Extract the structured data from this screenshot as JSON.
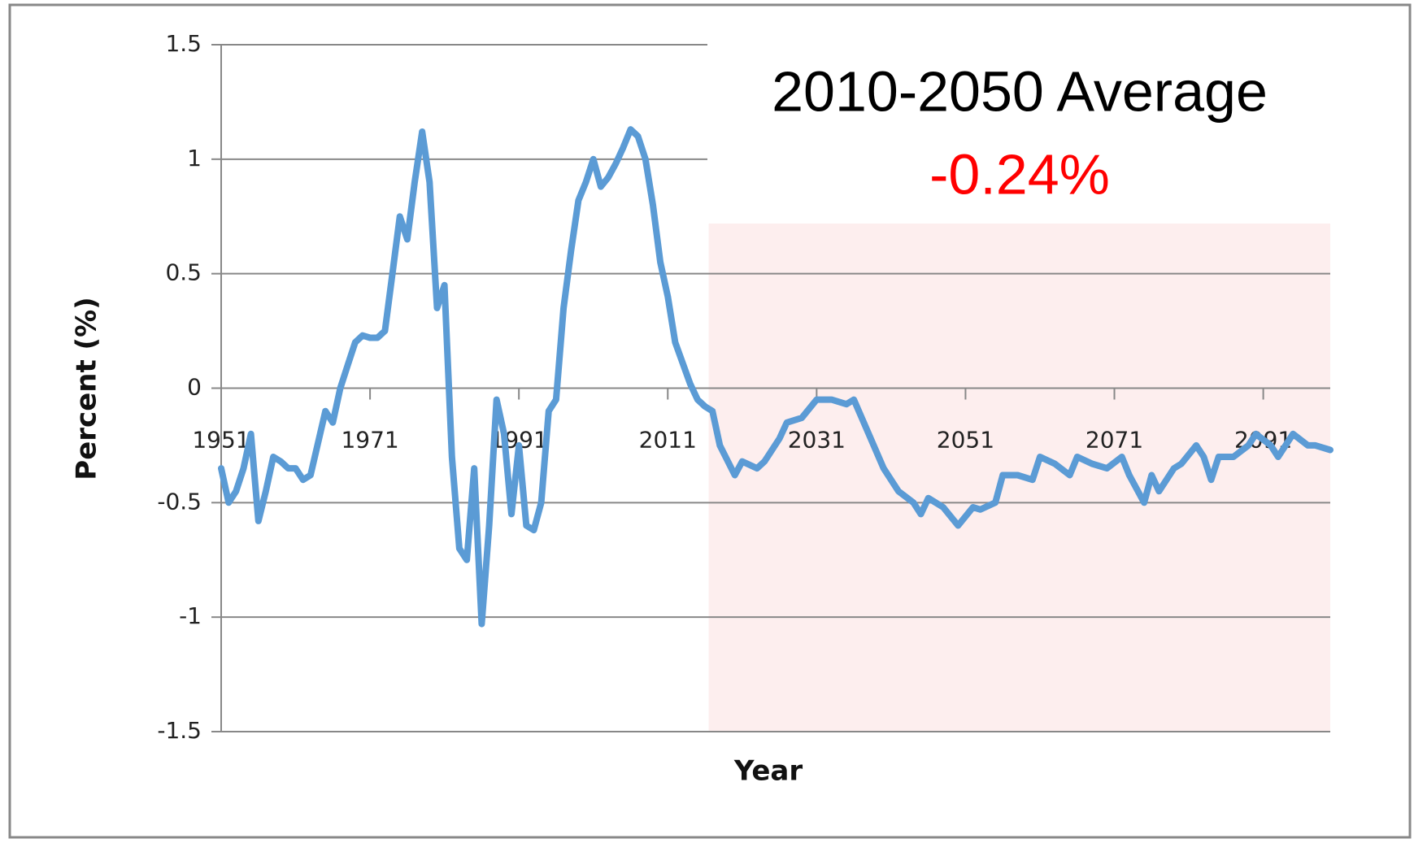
{
  "chart_data": {
    "type": "line",
    "x_label": "Year",
    "y_label": "Percent (%)",
    "annotation": {
      "title": "2010-2050 Average",
      "value": "-0.24%"
    },
    "highlight": {
      "xlim": [
        2016.5,
        2100
      ],
      "color": "#fdeeee"
    },
    "x": [
      1951,
      1952,
      1953,
      1954,
      1955,
      1956,
      1957,
      1958,
      1959,
      1960,
      1961,
      1962,
      1963,
      1965,
      1966,
      1967,
      1968,
      1969,
      1970,
      1971,
      1972,
      1973,
      1974,
      1975,
      1976,
      1977,
      1978,
      1979,
      1980,
      1981,
      1982,
      1983,
      1984,
      1985,
      1986,
      1987,
      1988,
      1989,
      1990,
      1991,
      1992,
      1993,
      1994,
      1995,
      1996,
      1997,
      1998,
      1999,
      2000,
      2001,
      2002,
      2003,
      2004,
      2005,
      2006,
      2007,
      2008,
      2009,
      2010,
      2011,
      2012,
      2014,
      2015,
      2016,
      2017,
      2018,
      2020,
      2021,
      2023,
      2024,
      2026,
      2027,
      2029,
      2031,
      2033,
      2035,
      2036,
      2038,
      2040,
      2042,
      2044,
      2045,
      2046,
      2048,
      2050,
      2052,
      2053,
      2055,
      2056,
      2058,
      2060,
      2061,
      2063,
      2065,
      2066,
      2068,
      2070,
      2072,
      2073,
      2075,
      2076,
      2077,
      2079,
      2080,
      2082,
      2083,
      2084,
      2085,
      2087,
      2089,
      2090,
      2092,
      2093,
      2095,
      2097,
      2098,
      2100
    ],
    "series": [
      {
        "name": "Percent",
        "color": "#5b9bd5",
        "values": [
          -0.35,
          -0.5,
          -0.45,
          -0.35,
          -0.2,
          -0.58,
          -0.45,
          -0.3,
          -0.32,
          -0.35,
          -0.35,
          -0.4,
          -0.38,
          -0.1,
          -0.15,
          0,
          0.1,
          0.2,
          0.23,
          0.22,
          0.22,
          0.25,
          0.5,
          0.75,
          0.65,
          0.9,
          1.12,
          0.9,
          0.35,
          0.45,
          -0.3,
          -0.7,
          -0.75,
          -0.35,
          -1.03,
          -0.6,
          -0.05,
          -0.2,
          -0.55,
          -0.25,
          -0.6,
          -0.62,
          -0.5,
          -0.1,
          -0.05,
          0.35,
          0.6,
          0.82,
          0.9,
          1.0,
          0.88,
          0.92,
          0.98,
          1.05,
          1.13,
          1.1,
          1.0,
          0.8,
          0.55,
          0.4,
          0.2,
          0.02,
          -0.05,
          -0.08,
          -0.1,
          -0.25,
          -0.38,
          -0.32,
          -0.35,
          -0.32,
          -0.22,
          -0.15,
          -0.13,
          -0.05,
          -0.05,
          -0.07,
          -0.05,
          -0.2,
          -0.35,
          -0.45,
          -0.5,
          -0.55,
          -0.48,
          -0.52,
          -0.6,
          -0.52,
          -0.53,
          -0.5,
          -0.38,
          -0.38,
          -0.4,
          -0.3,
          -0.33,
          -0.38,
          -0.3,
          -0.33,
          -0.35,
          -0.3,
          -0.38,
          -0.5,
          -0.38,
          -0.45,
          -0.35,
          -0.33,
          -0.25,
          -0.3,
          -0.4,
          -0.3,
          -0.3,
          -0.25,
          -0.2,
          -0.25,
          -0.3,
          -0.2,
          -0.25,
          -0.25,
          -0.27
        ]
      }
    ],
    "xlim": [
      1951,
      2100
    ],
    "xticks": [
      1951,
      1971,
      1991,
      2011,
      2031,
      2051,
      2071,
      2091
    ],
    "ylim": [
      -1.5,
      1.5
    ],
    "yticks": [
      1.5,
      1,
      0.5,
      0,
      -0.5,
      -1,
      -1.5
    ],
    "grid": true
  }
}
